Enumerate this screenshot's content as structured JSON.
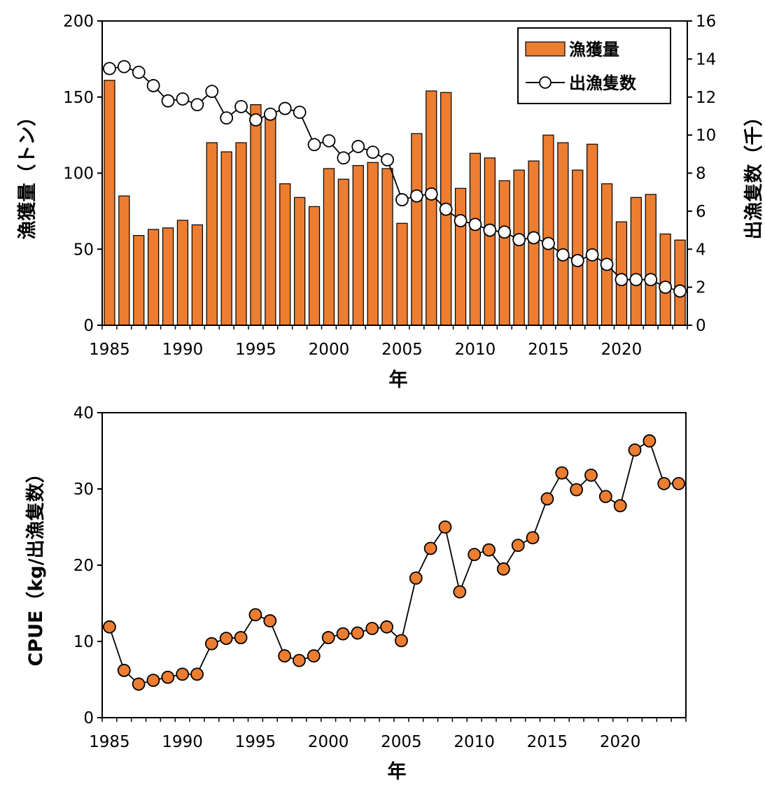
{
  "colors": {
    "bar": "#ed7d31",
    "marker_fill_cpue": "#ed7d31",
    "marker_fill_vessels": "#ffffff",
    "line": "#000000"
  },
  "chart_data": [
    {
      "type": "bar+line",
      "xlabel": "年",
      "ylabel_left": "漁獲量（トン）",
      "ylabel_right": "出漁隻数（千）",
      "xlim": [
        1984.5,
        2024.5
      ],
      "ylim_left": [
        0,
        200
      ],
      "ylim_right": [
        0,
        16
      ],
      "x_ticks": [
        1985,
        1990,
        1995,
        2000,
        2005,
        2010,
        2015,
        2020
      ],
      "y_ticks_left": [
        0,
        50,
        100,
        150,
        200
      ],
      "y_ticks_right": [
        0,
        2,
        4,
        6,
        8,
        10,
        12,
        14,
        16
      ],
      "legend_position": "top-right",
      "grid": false,
      "x": [
        1985,
        1986,
        1987,
        1988,
        1989,
        1990,
        1991,
        1992,
        1993,
        1994,
        1995,
        1996,
        1997,
        1998,
        1999,
        2000,
        2001,
        2002,
        2003,
        2004,
        2005,
        2006,
        2007,
        2008,
        2009,
        2010,
        2011,
        2012,
        2013,
        2014,
        2015,
        2016,
        2017,
        2018,
        2019,
        2020,
        2021,
        2022,
        2023,
        2024
      ],
      "series": [
        {
          "name": "漁獲量",
          "type": "bar",
          "axis": "left",
          "values": [
            161,
            85,
            59,
            63,
            64,
            69,
            66,
            120,
            114,
            120,
            145,
            136,
            93,
            84,
            78,
            103,
            96,
            105,
            107,
            103,
            67,
            126,
            154,
            153,
            90,
            113,
            110,
            95,
            102,
            108,
            125,
            120,
            102,
            119,
            93,
            68,
            84,
            86,
            60,
            56
          ]
        },
        {
          "name": "出漁隻数",
          "type": "line",
          "axis": "right",
          "values": [
            13.5,
            13.6,
            13.3,
            12.6,
            11.8,
            11.9,
            11.6,
            12.3,
            10.9,
            11.5,
            10.8,
            11.1,
            11.4,
            11.2,
            9.5,
            9.7,
            8.8,
            9.4,
            9.1,
            8.7,
            6.6,
            6.8,
            6.9,
            6.1,
            5.5,
            5.3,
            5.0,
            4.9,
            4.5,
            4.6,
            4.3,
            3.7,
            3.4,
            3.7,
            3.2,
            2.4,
            2.4,
            2.4,
            2.0,
            1.8
          ]
        }
      ]
    },
    {
      "type": "line",
      "xlabel": "年",
      "ylabel": "CPUE（kg/出漁隻数）",
      "xlim": [
        1984.5,
        2024.5
      ],
      "ylim": [
        0,
        40
      ],
      "x_ticks": [
        1985,
        1990,
        1995,
        2000,
        2005,
        2010,
        2015,
        2020
      ],
      "y_ticks": [
        0,
        10,
        20,
        30,
        40
      ],
      "grid": false,
      "x": [
        1985,
        1986,
        1987,
        1988,
        1989,
        1990,
        1991,
        1992,
        1993,
        1994,
        1995,
        1996,
        1997,
        1998,
        1999,
        2000,
        2001,
        2002,
        2003,
        2004,
        2005,
        2006,
        2007,
        2008,
        2009,
        2010,
        2011,
        2012,
        2013,
        2014,
        2015,
        2016,
        2017,
        2018,
        2019,
        2020,
        2021,
        2022,
        2023,
        2024
      ],
      "series": [
        {
          "values": [
            11.9,
            6.2,
            4.4,
            4.9,
            5.3,
            5.7,
            5.7,
            9.7,
            10.4,
            10.5,
            13.5,
            12.7,
            8.1,
            7.5,
            8.1,
            10.5,
            11.0,
            11.1,
            11.7,
            11.9,
            10.1,
            18.3,
            22.2,
            25.0,
            16.5,
            21.4,
            22.0,
            19.5,
            22.6,
            23.6,
            28.7,
            32.1,
            29.9,
            31.8,
            29.0,
            27.8,
            35.1,
            36.3,
            30.7,
            30.7
          ]
        }
      ]
    }
  ]
}
